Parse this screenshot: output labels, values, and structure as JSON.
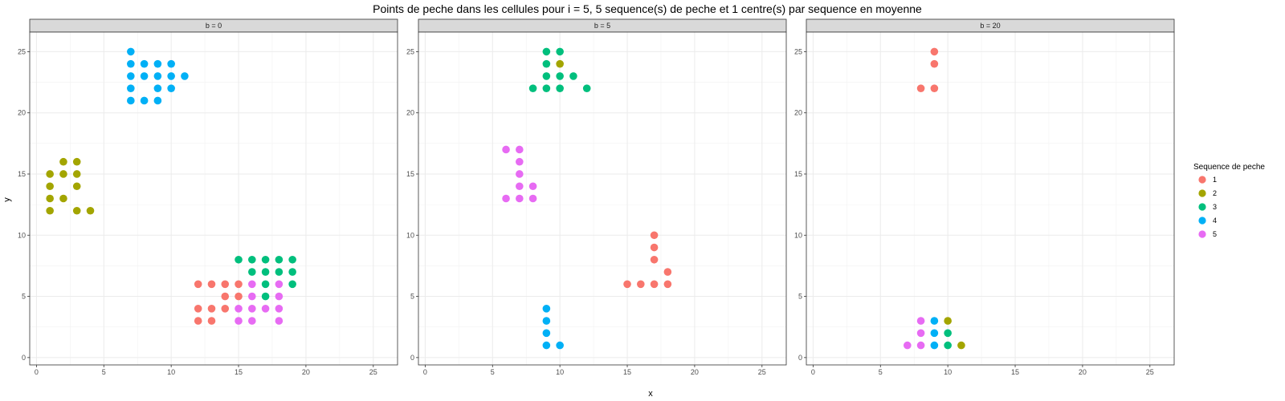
{
  "chart_data": {
    "type": "scatter",
    "title": "Points de peche dans les cellules pour i = 5, 5 sequence(s) de peche et 1 centre(s) par sequence en moyenne",
    "xlabel": "x",
    "ylabel": "y",
    "xlim": [
      -0.5,
      26.8
    ],
    "ylim": [
      -0.6,
      26.6
    ],
    "x_ticks": [
      0,
      5,
      10,
      15,
      20,
      25
    ],
    "y_ticks": [
      0,
      5,
      10,
      15,
      20,
      25
    ],
    "grid": true,
    "legend": {
      "title": "Sequence de peche",
      "position": "right",
      "entries": [
        "1",
        "2",
        "3",
        "4",
        "5"
      ],
      "colors": [
        "#F8766D",
        "#A3A500",
        "#00BF7D",
        "#00B0F6",
        "#E76BF3"
      ]
    },
    "panels": [
      {
        "label": "b = 0",
        "series": [
          {
            "name": "1",
            "points": [
              [
                12,
                6
              ],
              [
                13,
                6
              ],
              [
                14,
                6
              ],
              [
                15,
                6
              ],
              [
                14,
                5
              ],
              [
                15,
                5
              ],
              [
                12,
                4
              ],
              [
                13,
                4
              ],
              [
                14,
                4
              ],
              [
                12,
                3
              ],
              [
                13,
                3
              ]
            ]
          },
          {
            "name": "2",
            "points": [
              [
                1,
                15
              ],
              [
                2,
                16
              ],
              [
                3,
                16
              ],
              [
                2,
                15
              ],
              [
                3,
                15
              ],
              [
                1,
                14
              ],
              [
                3,
                14
              ],
              [
                1,
                13
              ],
              [
                2,
                13
              ],
              [
                1,
                12
              ],
              [
                3,
                12
              ],
              [
                4,
                12
              ]
            ]
          },
          {
            "name": "3",
            "points": [
              [
                15,
                8
              ],
              [
                16,
                8
              ],
              [
                17,
                8
              ],
              [
                18,
                8
              ],
              [
                19,
                8
              ],
              [
                16,
                7
              ],
              [
                17,
                7
              ],
              [
                18,
                7
              ],
              [
                19,
                7
              ],
              [
                17,
                6
              ],
              [
                19,
                6
              ],
              [
                17,
                5
              ]
            ]
          },
          {
            "name": "4",
            "points": [
              [
                7,
                25
              ],
              [
                7,
                24
              ],
              [
                8,
                24
              ],
              [
                9,
                24
              ],
              [
                10,
                24
              ],
              [
                7,
                23
              ],
              [
                8,
                23
              ],
              [
                9,
                23
              ],
              [
                10,
                23
              ],
              [
                11,
                23
              ],
              [
                7,
                22
              ],
              [
                9,
                22
              ],
              [
                10,
                22
              ],
              [
                7,
                21
              ],
              [
                8,
                21
              ],
              [
                9,
                21
              ]
            ]
          },
          {
            "name": "5",
            "points": [
              [
                16,
                6
              ],
              [
                18,
                6
              ],
              [
                16,
                5
              ],
              [
                18,
                5
              ],
              [
                15,
                4
              ],
              [
                16,
                4
              ],
              [
                17,
                4
              ],
              [
                18,
                4
              ],
              [
                15,
                3
              ],
              [
                16,
                3
              ],
              [
                18,
                3
              ]
            ]
          }
        ]
      },
      {
        "label": "b = 5",
        "series": [
          {
            "name": "1",
            "points": [
              [
                17,
                10
              ],
              [
                17,
                9
              ],
              [
                17,
                8
              ],
              [
                18,
                7
              ],
              [
                15,
                6
              ],
              [
                16,
                6
              ],
              [
                17,
                6
              ],
              [
                18,
                6
              ]
            ]
          },
          {
            "name": "2",
            "points": [
              [
                10,
                24
              ]
            ]
          },
          {
            "name": "3",
            "points": [
              [
                9,
                25
              ],
              [
                10,
                25
              ],
              [
                9,
                24
              ],
              [
                9,
                23
              ],
              [
                10,
                23
              ],
              [
                11,
                23
              ],
              [
                8,
                22
              ],
              [
                9,
                22
              ],
              [
                10,
                22
              ],
              [
                12,
                22
              ]
            ]
          },
          {
            "name": "4",
            "points": [
              [
                9,
                4
              ],
              [
                9,
                3
              ],
              [
                9,
                2
              ],
              [
                9,
                1
              ],
              [
                10,
                1
              ]
            ]
          },
          {
            "name": "5",
            "points": [
              [
                6,
                17
              ],
              [
                7,
                17
              ],
              [
                7,
                16
              ],
              [
                7,
                15
              ],
              [
                7,
                14
              ],
              [
                8,
                14
              ],
              [
                6,
                13
              ],
              [
                7,
                13
              ],
              [
                8,
                13
              ]
            ]
          }
        ]
      },
      {
        "label": "b = 20",
        "series": [
          {
            "name": "1",
            "points": [
              [
                9,
                25
              ],
              [
                9,
                24
              ],
              [
                8,
                22
              ],
              [
                9,
                22
              ]
            ]
          },
          {
            "name": "2",
            "points": [
              [
                10,
                3
              ],
              [
                11,
                1
              ]
            ]
          },
          {
            "name": "3",
            "points": [
              [
                10,
                2
              ],
              [
                10,
                1
              ]
            ]
          },
          {
            "name": "4",
            "points": [
              [
                9,
                3
              ],
              [
                9,
                2
              ],
              [
                9,
                1
              ]
            ]
          },
          {
            "name": "5",
            "points": [
              [
                8,
                3
              ],
              [
                8,
                2
              ],
              [
                7,
                1
              ],
              [
                8,
                1
              ]
            ]
          }
        ]
      }
    ]
  }
}
